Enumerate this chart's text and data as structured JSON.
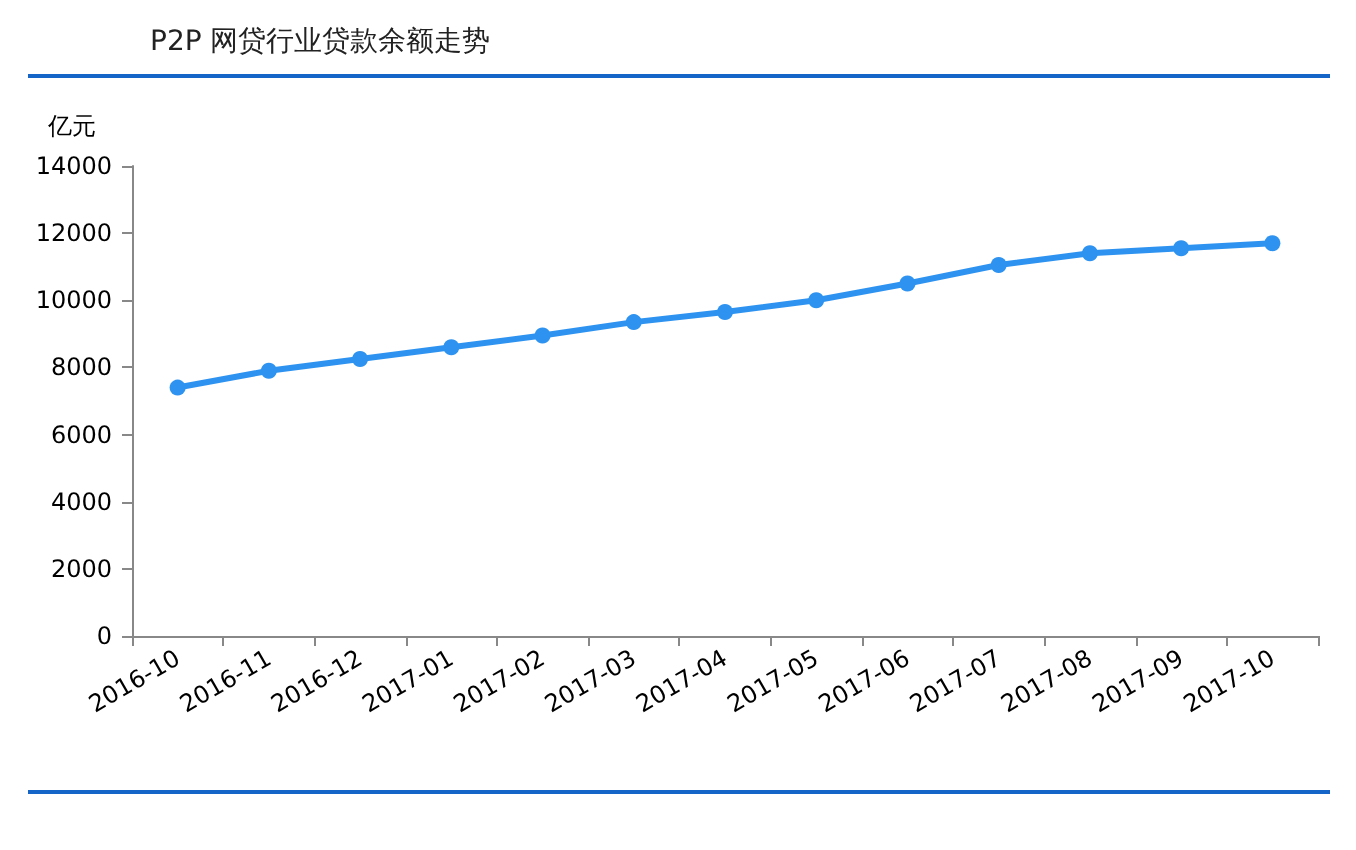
{
  "chart_data": {
    "type": "line",
    "title": "P2P 网贷行业贷款余额走势",
    "ylabel": "亿元",
    "categories": [
      "2016-10",
      "2016-11",
      "2016-12",
      "2017-01",
      "2017-02",
      "2017-03",
      "2017-04",
      "2017-05",
      "2017-06",
      "2017-07",
      "2017-08",
      "2017-09",
      "2017-10"
    ],
    "values": [
      7400,
      7900,
      8250,
      8600,
      8950,
      9350,
      9650,
      10000,
      10500,
      11050,
      11400,
      11550,
      11700
    ],
    "color": "#2e93f0",
    "marker": "circle",
    "line_style": "solid",
    "ylim": [
      0,
      14000
    ],
    "yticks": [
      0,
      2000,
      4000,
      6000,
      8000,
      10000,
      12000,
      14000
    ]
  }
}
